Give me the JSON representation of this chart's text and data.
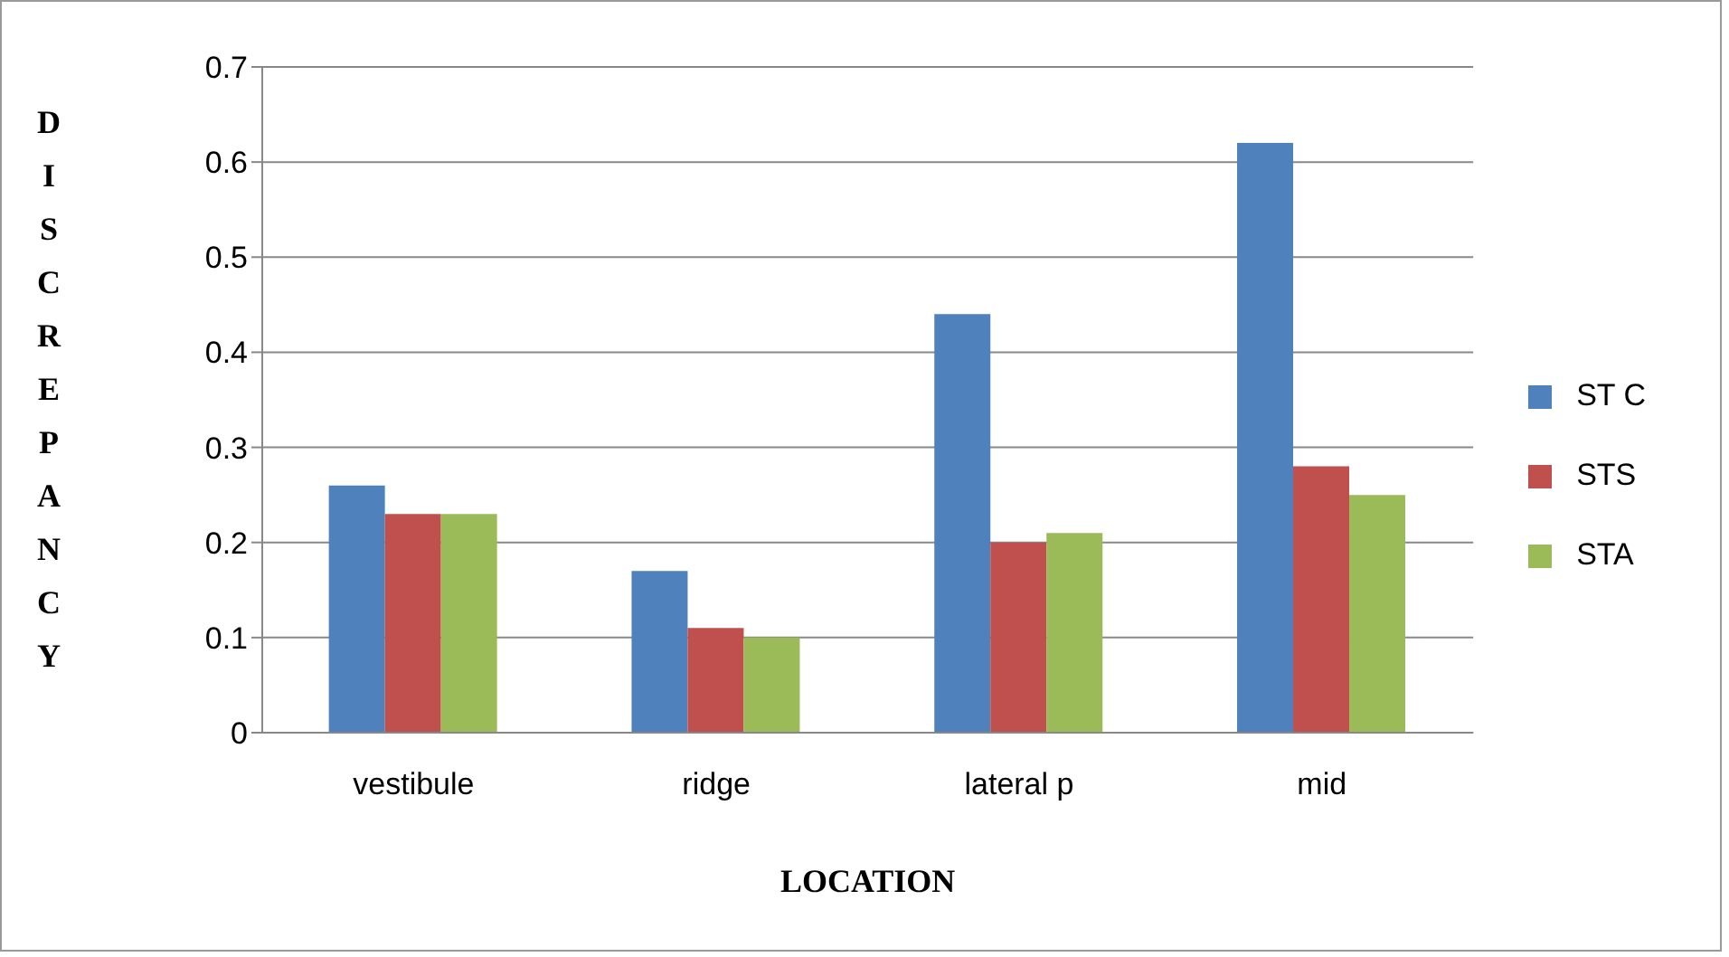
{
  "chart_data": {
    "type": "bar",
    "xlabel": "LOCATION",
    "ylabel": "DISCREPANCY",
    "categories": [
      "vestibule",
      "ridge",
      "lateral p",
      "mid"
    ],
    "series": [
      {
        "name": "ST C",
        "color": "#4f81bd",
        "values": [
          0.26,
          0.17,
          0.44,
          0.62
        ]
      },
      {
        "name": "STS",
        "color": "#c0504d",
        "values": [
          0.23,
          0.11,
          0.2,
          0.28
        ]
      },
      {
        "name": "STA",
        "color": "#9bbb59",
        "values": [
          0.23,
          0.1,
          0.21,
          0.25
        ]
      }
    ],
    "ylim": [
      0,
      0.7
    ],
    "yticks": [
      0,
      0.1,
      0.2,
      0.3,
      0.4,
      0.5,
      0.6,
      0.7
    ],
    "grid": "y",
    "legend": "right"
  }
}
